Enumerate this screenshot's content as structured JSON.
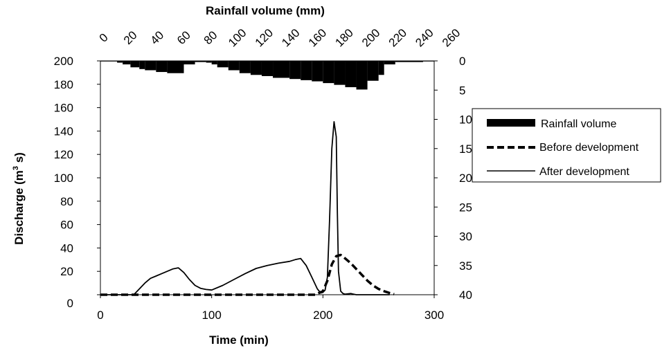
{
  "chart_data": {
    "type": "line",
    "x_axis": {
      "label": "Time (min)",
      "range": [
        0,
        300
      ],
      "ticks": [
        0,
        100,
        200,
        300
      ],
      "tick_labels": [
        "0",
        "100",
        "200",
        "300"
      ]
    },
    "y_axis_left": {
      "label": "Discharge (m³ s)",
      "label_main": "Discharge (m",
      "label_sup": "3",
      "label_end": " s)",
      "range": [
        0,
        200
      ],
      "ticks": [
        0,
        20,
        40,
        60,
        80,
        100,
        120,
        140,
        160,
        180,
        200
      ],
      "tick_labels": [
        "0",
        "20",
        "40",
        "60",
        "80",
        "100",
        "120",
        "140",
        "160",
        "180",
        "200"
      ]
    },
    "y_axis_right": {
      "label": "",
      "range": [
        0,
        40
      ],
      "inverted": true,
      "ticks": [
        0,
        5,
        10,
        15,
        20,
        25,
        30,
        35,
        40
      ],
      "tick_labels": [
        "0",
        "5",
        "10",
        "15",
        "20",
        "25",
        "30",
        "35",
        "40"
      ]
    },
    "x_axis_top": {
      "label": "Rainfall volume (mm)",
      "tick_labels": [
        "0",
        "20",
        "40",
        "60",
        "80",
        "100",
        "120",
        "140",
        "160",
        "180",
        "200",
        "220",
        "240",
        "260"
      ]
    },
    "legend": {
      "placement": "right",
      "entries": [
        {
          "label": "Rainfall volume",
          "style": "bar"
        },
        {
          "label": "Before development",
          "style": "dashed"
        },
        {
          "label": "After development",
          "style": "solid"
        }
      ]
    },
    "series": [
      {
        "name": "Rainfall volume",
        "type": "bar",
        "axis": "right",
        "bars": [
          {
            "x0": 0,
            "x1": 15,
            "value": 0.1
          },
          {
            "x0": 15,
            "x1": 20,
            "value": 0.3
          },
          {
            "x0": 20,
            "x1": 27,
            "value": 0.6
          },
          {
            "x0": 27,
            "x1": 35,
            "value": 1.1
          },
          {
            "x0": 35,
            "x1": 40,
            "value": 1.4
          },
          {
            "x0": 40,
            "x1": 50,
            "value": 1.6
          },
          {
            "x0": 50,
            "x1": 60,
            "value": 1.9
          },
          {
            "x0": 60,
            "x1": 75,
            "value": 2.1
          },
          {
            "x0": 75,
            "x1": 85,
            "value": 0.6
          },
          {
            "x0": 85,
            "x1": 95,
            "value": 0.2
          },
          {
            "x0": 95,
            "x1": 100,
            "value": 0.3
          },
          {
            "x0": 100,
            "x1": 105,
            "value": 0.6
          },
          {
            "x0": 105,
            "x1": 115,
            "value": 1.1
          },
          {
            "x0": 115,
            "x1": 125,
            "value": 1.6
          },
          {
            "x0": 125,
            "x1": 135,
            "value": 2.1
          },
          {
            "x0": 135,
            "x1": 145,
            "value": 2.4
          },
          {
            "x0": 145,
            "x1": 155,
            "value": 2.6
          },
          {
            "x0": 155,
            "x1": 170,
            "value": 2.9
          },
          {
            "x0": 170,
            "x1": 180,
            "value": 3.1
          },
          {
            "x0": 180,
            "x1": 190,
            "value": 3.3
          },
          {
            "x0": 190,
            "x1": 200,
            "value": 3.5
          },
          {
            "x0": 200,
            "x1": 210,
            "value": 3.8
          },
          {
            "x0": 210,
            "x1": 220,
            "value": 4.1
          },
          {
            "x0": 220,
            "x1": 230,
            "value": 4.5
          },
          {
            "x0": 230,
            "x1": 240,
            "value": 4.9
          },
          {
            "x0": 240,
            "x1": 250,
            "value": 3.4
          },
          {
            "x0": 250,
            "x1": 255,
            "value": 2.4
          },
          {
            "x0": 255,
            "x1": 265,
            "value": 0.6
          },
          {
            "x0": 265,
            "x1": 290,
            "value": 0.2
          },
          {
            "x0": 290,
            "x1": 300,
            "value": 0.1
          }
        ]
      },
      {
        "name": "Before development",
        "type": "line",
        "style": "dashed",
        "axis": "left",
        "x": [
          0,
          50,
          100,
          150,
          193,
          200,
          204,
          208,
          212,
          216,
          220,
          225,
          230,
          235,
          240,
          245,
          250,
          255,
          260,
          264
        ],
        "y": [
          0,
          0,
          0,
          0,
          0,
          3,
          12,
          26,
          33,
          34,
          31,
          27,
          22,
          17,
          12,
          8,
          5,
          3,
          1.5,
          0.5
        ]
      },
      {
        "name": "After development",
        "type": "line",
        "style": "solid",
        "axis": "left",
        "x": [
          0,
          30,
          35,
          40,
          45,
          50,
          55,
          60,
          65,
          70,
          75,
          80,
          85,
          90,
          95,
          100,
          110,
          120,
          130,
          140,
          150,
          160,
          170,
          175,
          180,
          185,
          190,
          195,
          198,
          200,
          202,
          204,
          206,
          208,
          210,
          212,
          213,
          214,
          216,
          218,
          220,
          225,
          230,
          240,
          260
        ],
        "y": [
          0,
          0,
          5,
          10,
          14,
          16,
          18,
          20,
          22,
          23,
          19,
          13,
          8,
          5.5,
          4.5,
          4,
          8,
          13,
          18,
          22.5,
          25,
          27,
          28.5,
          30,
          31,
          25,
          15,
          5,
          1.5,
          2,
          4,
          15,
          65,
          125,
          148,
          135,
          70,
          20,
          3,
          1,
          0.5,
          1,
          0,
          0,
          0
        ]
      }
    ]
  }
}
